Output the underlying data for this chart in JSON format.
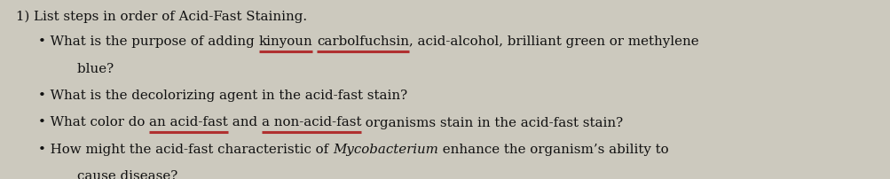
{
  "background_color": "#ccc9be",
  "text_color": "#111111",
  "underline_color": "#b03030",
  "font_size": 10.8,
  "title_line": "1) List steps in order of Acid-Fast Staining.",
  "lines": [
    {
      "parts": [
        {
          "text": "• What is the purpose of adding ",
          "style": "normal",
          "underline": false
        },
        {
          "text": "kinyoun",
          "style": "normal",
          "underline": true
        },
        {
          "text": " ",
          "style": "normal",
          "underline": false
        },
        {
          "text": "carbolfuchsin",
          "style": "normal",
          "underline": true
        },
        {
          "text": ", acid-alcohol, brilliant green or methylene",
          "style": "normal",
          "underline": false
        }
      ]
    },
    {
      "parts": [
        {
          "text": "    blue?",
          "style": "normal",
          "underline": false
        }
      ]
    },
    {
      "parts": [
        {
          "text": "• What is the decolorizing agent in the acid-fast stain?",
          "style": "normal",
          "underline": false
        }
      ]
    },
    {
      "parts": [
        {
          "text": "• What color do ",
          "style": "normal",
          "underline": false
        },
        {
          "text": "an acid-fast",
          "style": "normal",
          "underline": true
        },
        {
          "text": " and ",
          "style": "normal",
          "underline": false
        },
        {
          "text": "a non-acid-fast",
          "style": "normal",
          "underline": true
        },
        {
          "text": " organisms stain in the acid-fast stain?",
          "style": "normal",
          "underline": false
        }
      ]
    },
    {
      "parts": [
        {
          "text": "• How might the acid-fast characteristic of ",
          "style": "normal",
          "underline": false
        },
        {
          "text": "Mycobacterium",
          "style": "italic",
          "underline": false
        },
        {
          "text": " enhance the organism’s ability to",
          "style": "normal",
          "underline": false
        }
      ]
    },
    {
      "parts": [
        {
          "text": "    cause disease?",
          "style": "normal",
          "underline": false
        }
      ]
    }
  ],
  "figsize": [
    10.04,
    2.03
  ],
  "dpi": 100
}
